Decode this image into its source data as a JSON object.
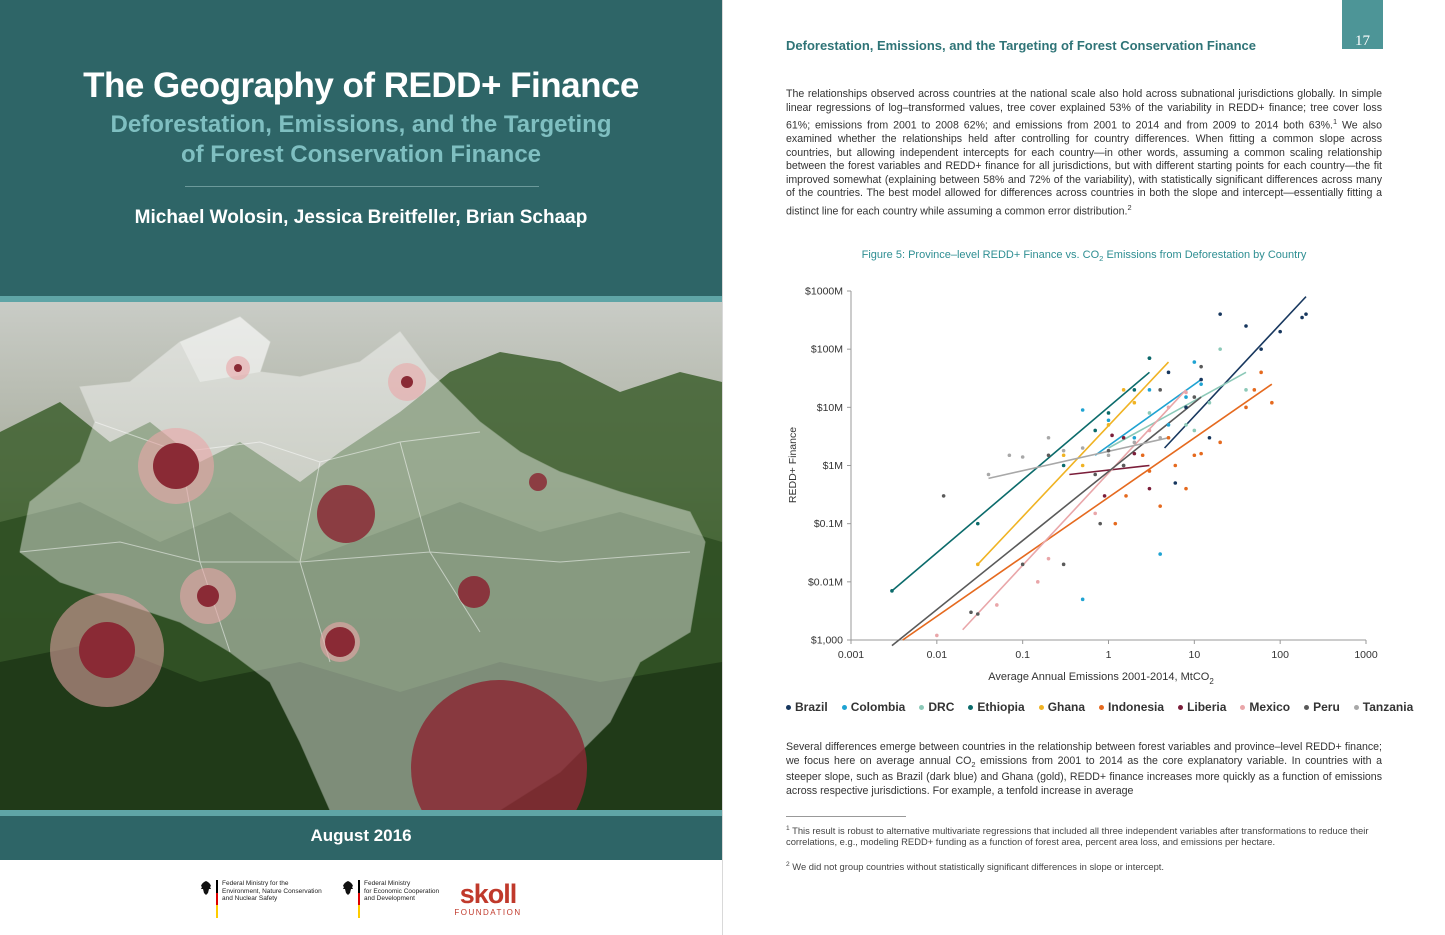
{
  "cover": {
    "title": "The Geography of REDD+ Finance",
    "subtitle_line1": "Deforestation, Emissions, and the Targeting",
    "subtitle_line2": "of Forest Conservation Finance",
    "authors": "Michael Wolosin, Jessica Breitfeller, Brian Schaap",
    "date": "August 2016",
    "logos": {
      "bmub": [
        "Federal Ministry for the",
        "Environment, Nature Conservation",
        "and Nuclear Safety"
      ],
      "bmz": [
        "Federal Ministry",
        "for Economic Cooperation",
        "and Development"
      ],
      "skoll_word": "skoll",
      "skoll_sub": "FOUNDATION"
    }
  },
  "page": {
    "running_head": "Deforestation, Emissions, and the Targeting of Forest Conservation Finance",
    "page_number": "17",
    "para1_a": "The relationships observed across countries at the national scale also hold across subnational jurisdictions globally. In simple linear regressions of log–transformed values, tree cover explained 53% of the variability in REDD+ finance; tree cover loss 61%; emissions from 2001 to 2008 62%; and emissions from 2001 to 2014 and from 2009 to 2014 both 63%.",
    "para1_sup1": "1",
    "para1_b": " We also examined whether the relationships held after controlling for country differences. When fitting a common slope across countries, but allowing independent intercepts for each country—in other words, assuming a common scaling relationship between the forest variables and REDD+ finance for all jurisdictions, but with different starting points for each country—the fit improved somewhat (explaining between 58% and 72% of the variability), with statistically significant differences across many of the countries. The best model allowed for differences across countries in both the slope and intercept—essentially fitting a distinct line for each country while assuming a common error distribution.",
    "para1_sup2": "2",
    "para2_a": "Several differences emerge between countries in the relationship between forest variables and province–level REDD+ finance; we focus here on average annual CO",
    "para2_sub": "2",
    "para2_b": " emissions from 2001 to 2014 as the core explanatory variable. In countries with a steeper slope, such as Brazil (dark blue) and Ghana (gold), REDD+ finance increases more quickly as a function of emissions across respective jurisdictions. For example, a tenfold increase in average",
    "fn1_num": "1",
    "fn1": " This result is robust to alternative multivariate regressions that included all three independent variables after transformations to reduce their correlations, e.g., modeling REDD+ funding as a function of forest area, percent area loss, and emissions per hectare.",
    "fn2_num": "2",
    "fn2": " We did not group countries without statistically significant differences in slope or intercept."
  },
  "chart_data": {
    "type": "scatter",
    "title_a": "Figure 5: Province–level REDD+ Finance  vs. CO",
    "title_sub": "2",
    "title_b": " Emissions from Deforestation by Country",
    "xlabel_a": "Average Annual Emissions 2001-2014, MtCO",
    "xlabel_sub": "2",
    "ylabel": "REDD+ Finance",
    "x_scale": "log10",
    "y_scale": "log10",
    "xlim": [
      0.001,
      1000
    ],
    "ylim": [
      1000,
      1000000000
    ],
    "x_ticks": [
      {
        "v": 0.001,
        "label": "0.001"
      },
      {
        "v": 0.01,
        "label": "0.01"
      },
      {
        "v": 0.1,
        "label": "0.1"
      },
      {
        "v": 1,
        "label": "1"
      },
      {
        "v": 10,
        "label": "10"
      },
      {
        "v": 100,
        "label": "100"
      },
      {
        "v": 1000,
        "label": "1000"
      }
    ],
    "y_ticks": [
      {
        "v": 1000,
        "label": "$1,000"
      },
      {
        "v": 10000,
        "label": "$0.01M"
      },
      {
        "v": 100000,
        "label": "$0.1M"
      },
      {
        "v": 1000000,
        "label": "$1M"
      },
      {
        "v": 10000000,
        "label": "$10M"
      },
      {
        "v": 100000000,
        "label": "$100M"
      },
      {
        "v": 1000000000,
        "label": "$1000M"
      }
    ],
    "series": [
      {
        "name": "Brazil",
        "color": "#17375e",
        "line": [
          [
            4.5,
            2000000
          ],
          [
            200,
            800000000
          ]
        ],
        "points": [
          [
            20,
            400000000
          ],
          [
            40,
            250000000
          ],
          [
            60,
            100000000
          ],
          [
            100,
            200000000
          ],
          [
            200,
            400000000
          ],
          [
            180,
            350000000
          ],
          [
            8,
            10000000
          ],
          [
            12,
            30000000
          ],
          [
            5,
            40000000
          ],
          [
            3,
            70000000
          ],
          [
            15,
            3000000
          ],
          [
            6,
            500000
          ]
        ]
      },
      {
        "name": "Colombia",
        "color": "#1fa3d2",
        "line": [
          [
            0.7,
            1500000
          ],
          [
            12,
            30000000
          ]
        ],
        "points": [
          [
            0.5,
            9000000
          ],
          [
            1,
            6000000
          ],
          [
            2,
            3000000
          ],
          [
            3,
            20000000
          ],
          [
            5,
            5000000
          ],
          [
            8,
            15000000
          ],
          [
            10,
            60000000
          ],
          [
            4,
            30000
          ],
          [
            0.5,
            5000
          ],
          [
            12,
            25000000
          ],
          [
            1.5,
            1000000
          ]
        ]
      },
      {
        "name": "DRC",
        "color": "#8cc9b8",
        "line": [
          [
            1,
            2000000
          ],
          [
            40,
            40000000
          ]
        ],
        "points": [
          [
            5,
            3000000
          ],
          [
            8,
            5000000
          ],
          [
            15,
            12000000
          ],
          [
            20,
            100000000
          ],
          [
            40,
            20000000
          ],
          [
            3,
            8000000
          ],
          [
            10,
            4000000
          ]
        ]
      },
      {
        "name": "Ethiopia",
        "color": "#0b6b6b",
        "line": [
          [
            0.003,
            7000
          ],
          [
            3,
            40000000
          ]
        ],
        "points": [
          [
            0.003,
            7000
          ],
          [
            0.03,
            100000
          ],
          [
            0.3,
            1000000
          ],
          [
            1,
            8000000
          ],
          [
            2,
            20000000
          ],
          [
            3,
            70000000
          ],
          [
            0.7,
            4000000
          ]
        ]
      },
      {
        "name": "Ghana",
        "color": "#f0b323",
        "line": [
          [
            0.03,
            20000
          ],
          [
            5,
            60000000
          ]
        ],
        "points": [
          [
            0.03,
            20000
          ],
          [
            0.3,
            1500000
          ],
          [
            1,
            5000000
          ],
          [
            1.5,
            20000000
          ],
          [
            2,
            12000000
          ],
          [
            0.5,
            1000000
          ]
        ]
      },
      {
        "name": "Indonesia",
        "color": "#e56a1f",
        "line": [
          [
            0.004,
            1000
          ],
          [
            80,
            25000000
          ]
        ],
        "points": [
          [
            1.2,
            100000
          ],
          [
            1.6,
            300000
          ],
          [
            4,
            200000
          ],
          [
            6,
            1000000
          ],
          [
            8,
            400000
          ],
          [
            10,
            1500000
          ],
          [
            12,
            1600000
          ],
          [
            20,
            2500000
          ],
          [
            40,
            10000000
          ],
          [
            50,
            20000000
          ],
          [
            80,
            12000000
          ],
          [
            60,
            40000000
          ],
          [
            2.5,
            1500000
          ],
          [
            5,
            3000000
          ],
          [
            3,
            800000
          ]
        ]
      },
      {
        "name": "Liberia",
        "color": "#7b1e3a",
        "line": [
          [
            0.35,
            700000
          ],
          [
            3,
            1000000
          ]
        ],
        "points": [
          [
            1.5,
            3000000
          ],
          [
            2,
            1600000
          ],
          [
            3,
            400000
          ],
          [
            0.9,
            300000
          ],
          [
            1.1,
            3300000
          ]
        ]
      },
      {
        "name": "Mexico",
        "color": "#e9a6a9",
        "line": [
          [
            0.02,
            1500
          ],
          [
            8,
            20000000
          ]
        ],
        "points": [
          [
            0.01,
            1200
          ],
          [
            0.05,
            4000
          ],
          [
            0.2,
            25000
          ],
          [
            0.7,
            150000
          ],
          [
            1.5,
            1000000
          ],
          [
            3,
            4000000
          ],
          [
            5,
            10000000
          ],
          [
            8,
            18000000
          ],
          [
            0.15,
            10000
          ]
        ]
      },
      {
        "name": "Peru",
        "color": "#5a5a5a",
        "line": [
          [
            0.003,
            800
          ],
          [
            12,
            15000000
          ]
        ],
        "points": [
          [
            0.012,
            300000
          ],
          [
            0.025,
            3000
          ],
          [
            0.03,
            2800
          ],
          [
            0.1,
            20000
          ],
          [
            0.2,
            1500000
          ],
          [
            0.3,
            20000
          ],
          [
            0.7,
            700000
          ],
          [
            1,
            1800000
          ],
          [
            1.5,
            1000000
          ],
          [
            4,
            20000000
          ],
          [
            10,
            15000000
          ],
          [
            12,
            50000000
          ],
          [
            0.8,
            100000
          ]
        ]
      },
      {
        "name": "Tanzania",
        "color": "#a8a8a8",
        "line": [
          [
            0.04,
            600000
          ],
          [
            5,
            3000000
          ]
        ],
        "points": [
          [
            0.04,
            700000
          ],
          [
            0.07,
            1500000
          ],
          [
            0.1,
            1400000
          ],
          [
            0.2,
            3000000
          ],
          [
            0.5,
            2000000
          ],
          [
            1,
            1500000
          ],
          [
            2,
            2500000
          ],
          [
            4,
            3000000
          ],
          [
            0.3,
            1800000
          ]
        ]
      }
    ]
  }
}
